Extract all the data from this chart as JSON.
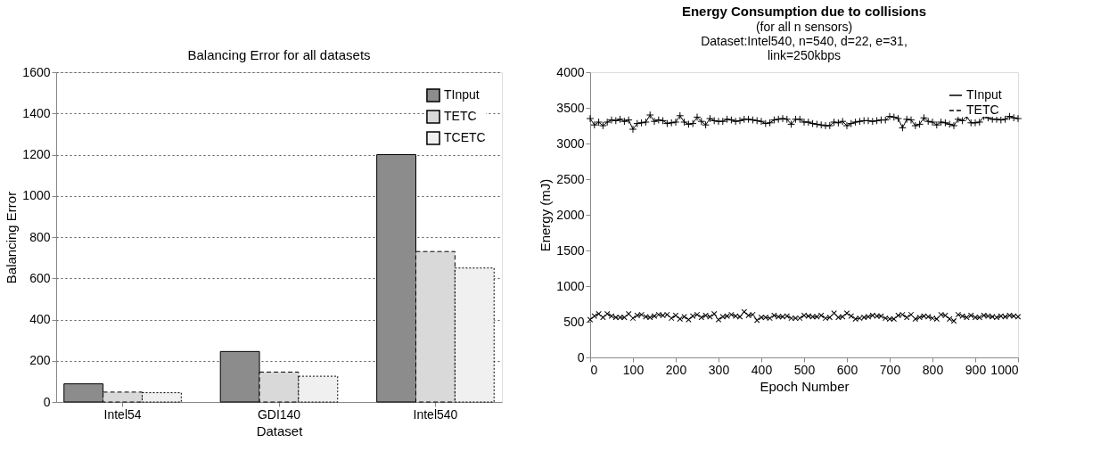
{
  "chart_data": [
    {
      "type": "bar",
      "title": "Balancing Error for all datasets",
      "xlabel": "Dataset",
      "ylabel": "Balancing Error",
      "categories": [
        "Intel54",
        "GDI140",
        "Intel540"
      ],
      "series": [
        {
          "name": "TInput",
          "color": "#8c8c8c",
          "values": [
            88,
            245,
            1200
          ]
        },
        {
          "name": "TETC",
          "color": "#d9d9d9",
          "line_style": "dashed",
          "values": [
            48,
            145,
            730
          ]
        },
        {
          "name": "TCETC",
          "color": "#f0f0f0",
          "line_style": "dotted",
          "values": [
            45,
            125,
            650
          ]
        }
      ],
      "ylim": [
        0,
        1600
      ],
      "yticks": [
        0,
        200,
        400,
        600,
        800,
        1000,
        1200,
        1400,
        1600
      ],
      "grid": "y",
      "legend": "top right"
    },
    {
      "type": "line",
      "title": "Energy Consumption due to collisions",
      "subtitle": "(for all n sensors)\nDataset:Intel540, n=540, d=22, e=31,\nlink=250kbps",
      "xlabel": "Epoch Number",
      "ylabel": "Energy (mJ)",
      "x": [
        0,
        10,
        20,
        30,
        40,
        50,
        60,
        70,
        80,
        90,
        100,
        110,
        120,
        130,
        140,
        150,
        160,
        170,
        180,
        190,
        200,
        210,
        220,
        230,
        240,
        250,
        260,
        270,
        280,
        290,
        300,
        310,
        320,
        330,
        340,
        350,
        360,
        370,
        380,
        390,
        400,
        410,
        420,
        430,
        440,
        450,
        460,
        470,
        480,
        490,
        500,
        510,
        520,
        530,
        540,
        550,
        560,
        570,
        580,
        590,
        600,
        610,
        620,
        630,
        640,
        650,
        660,
        670,
        680,
        690,
        700,
        710,
        720,
        730,
        740,
        750,
        760,
        770,
        780,
        790,
        800,
        810,
        820,
        830,
        840,
        850,
        860,
        870,
        880,
        890,
        900,
        910,
        920,
        930,
        940,
        950,
        960,
        970,
        980,
        990,
        1000
      ],
      "series": [
        {
          "name": "TInput",
          "color": "#000000",
          "marker": "cross",
          "line_style": "solid",
          "values": [
            3350,
            3260,
            3300,
            3250,
            3300,
            3330,
            3320,
            3340,
            3310,
            3330,
            3200,
            3280,
            3290,
            3300,
            3400,
            3310,
            3330,
            3320,
            3280,
            3290,
            3300,
            3390,
            3300,
            3270,
            3280,
            3370,
            3310,
            3260,
            3350,
            3320,
            3310,
            3310,
            3340,
            3330,
            3310,
            3320,
            3340,
            3340,
            3330,
            3320,
            3310,
            3280,
            3290,
            3330,
            3340,
            3350,
            3340,
            3270,
            3340,
            3340,
            3300,
            3300,
            3280,
            3270,
            3260,
            3250,
            3250,
            3300,
            3290,
            3310,
            3250,
            3280,
            3300,
            3310,
            3320,
            3320,
            3310,
            3320,
            3330,
            3330,
            3380,
            3370,
            3350,
            3220,
            3340,
            3330,
            3250,
            3270,
            3360,
            3310,
            3300,
            3260,
            3300,
            3290,
            3270,
            3250,
            3340,
            3320,
            3380,
            3290,
            3290,
            3300,
            3380,
            3360,
            3340,
            3340,
            3330,
            3340,
            3380,
            3360,
            3350
          ]
        },
        {
          "name": "TETC",
          "color": "#000000",
          "marker": "cross",
          "line_style": "dashed",
          "values": [
            530,
            580,
            610,
            560,
            610,
            580,
            560,
            560,
            560,
            610,
            550,
            590,
            600,
            570,
            560,
            580,
            600,
            590,
            600,
            550,
            590,
            540,
            570,
            530,
            580,
            600,
            560,
            590,
            570,
            610,
            530,
            570,
            580,
            600,
            580,
            570,
            640,
            590,
            600,
            520,
            560,
            560,
            550,
            590,
            570,
            570,
            580,
            550,
            550,
            550,
            590,
            580,
            570,
            570,
            590,
            550,
            560,
            620,
            560,
            570,
            620,
            580,
            540,
            550,
            560,
            570,
            590,
            580,
            580,
            550,
            540,
            540,
            590,
            600,
            560,
            600,
            540,
            560,
            580,
            570,
            550,
            540,
            600,
            590,
            540,
            510,
            600,
            580,
            560,
            590,
            560,
            560,
            590,
            580,
            570,
            560,
            580,
            570,
            590,
            580,
            570
          ]
        }
      ],
      "xlim": [
        0,
        1000
      ],
      "xticks": [
        0,
        100,
        200,
        300,
        400,
        500,
        600,
        700,
        800,
        900,
        1000
      ],
      "ylim": [
        0,
        4000
      ],
      "yticks": [
        0,
        500,
        1000,
        1500,
        2000,
        2500,
        3000,
        3500,
        4000
      ],
      "grid": false,
      "legend": "top right"
    }
  ]
}
